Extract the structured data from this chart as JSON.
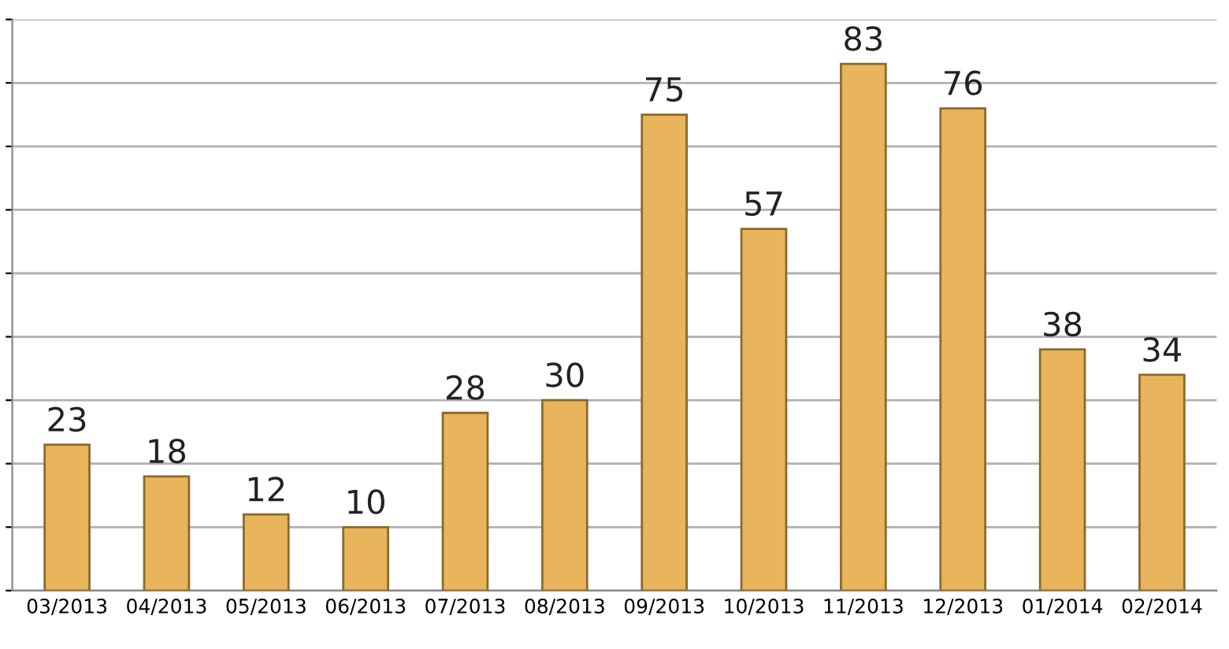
{
  "chart_data": {
    "type": "bar",
    "categories": [
      "03/2013",
      "04/2013",
      "05/2013",
      "06/2013",
      "07/2013",
      "08/2013",
      "09/2013",
      "10/2013",
      "11/2013",
      "12/2013",
      "01/2014",
      "02/2014"
    ],
    "values": [
      23,
      18,
      12,
      10,
      28,
      30,
      75,
      57,
      83,
      76,
      38,
      34
    ],
    "color": "#e8b45c",
    "ylim": [
      0,
      90
    ],
    "yticks": [
      {
        "value": 0,
        "label": null
      },
      {
        "value": 10,
        "label": null
      },
      {
        "value": 20,
        "label": null
      },
      {
        "value": 30,
        "label": null
      },
      {
        "value": 40,
        "label": null
      },
      {
        "value": 50,
        "label": null
      },
      {
        "value": 60,
        "label": null
      },
      {
        "value": 70,
        "label": null
      },
      {
        "value": 80,
        "label": null
      },
      {
        "value": 90,
        "label": null
      }
    ],
    "grid": "y",
    "tick_labels": "x",
    "data_labels": true
  }
}
